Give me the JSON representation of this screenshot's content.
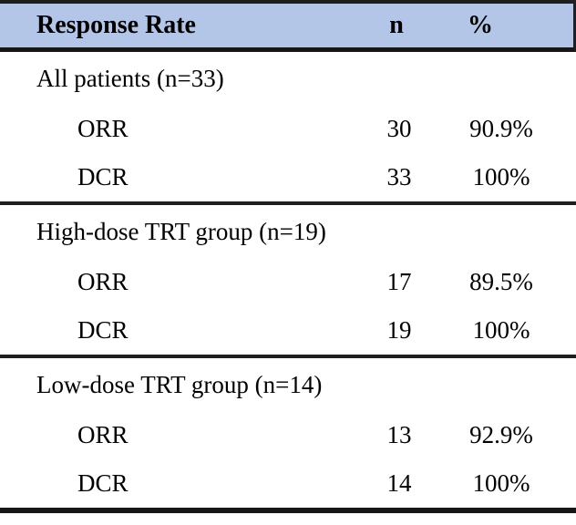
{
  "table": {
    "header": {
      "response_rate": "Response Rate",
      "n": "n",
      "pct": "%"
    },
    "sections": [
      {
        "title": "All patients (n=33)",
        "rows": [
          {
            "label": "ORR",
            "n": "30",
            "pct": "90.9%"
          },
          {
            "label": "DCR",
            "n": "33",
            "pct": "100%"
          }
        ]
      },
      {
        "title": "High-dose TRT group (n=19)",
        "rows": [
          {
            "label": "ORR",
            "n": "17",
            "pct": "89.5%"
          },
          {
            "label": "DCR",
            "n": "19",
            "pct": "100%"
          }
        ]
      },
      {
        "title": "Low-dose TRT group (n=14)",
        "rows": [
          {
            "label": "ORR",
            "n": "13",
            "pct": "92.9%"
          },
          {
            "label": "DCR",
            "n": "14",
            "pct": "100%"
          }
        ]
      }
    ]
  },
  "colors": {
    "header_bg": "#b4c6e7",
    "rule": "#1f1f1f",
    "text": "#000000"
  },
  "chart_data": {
    "type": "table",
    "title": "Response Rate",
    "columns": [
      "Response Rate",
      "n",
      "%"
    ],
    "groups": [
      {
        "group": "All patients (n=33)",
        "rows": [
          [
            "ORR",
            30,
            "90.9%"
          ],
          [
            "DCR",
            33,
            "100%"
          ]
        ]
      },
      {
        "group": "High-dose TRT group (n=19)",
        "rows": [
          [
            "ORR",
            17,
            "89.5%"
          ],
          [
            "DCR",
            19,
            "100%"
          ]
        ]
      },
      {
        "group": "Low-dose TRT group (n=14)",
        "rows": [
          [
            "ORR",
            13,
            "92.9%"
          ],
          [
            "DCR",
            14,
            "100%"
          ]
        ]
      }
    ]
  }
}
